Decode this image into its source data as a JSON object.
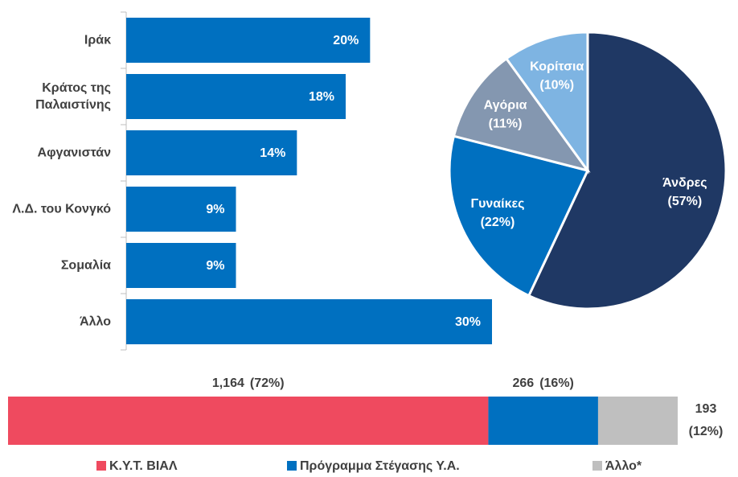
{
  "chart_data": [
    {
      "type": "hbar",
      "categories": [
        "Ιράκ",
        "Κράτος της Παλαιστίνης",
        "Αφγανιστάν",
        "Λ.Δ. του Κονγκό",
        "Σομαλία",
        "Άλλο"
      ],
      "values": [
        20,
        18,
        14,
        9,
        9,
        30
      ],
      "value_labels": [
        "20%",
        "18%",
        "14%",
        "9%",
        "9%",
        "30%"
      ],
      "color": "#0070c0"
    },
    {
      "type": "pie",
      "categories": [
        "Άνδρες",
        "Γυναίκες",
        "Αγόρια",
        "Κορίτσια"
      ],
      "values": [
        57,
        22,
        11,
        10
      ],
      "value_labels": [
        "(57%)",
        "(22%)",
        "(11%)",
        "(10%)"
      ],
      "colors": [
        "#1f3864",
        "#0070c0",
        "#8497b0",
        "#7eb4e2"
      ]
    },
    {
      "type": "stacked_hbar",
      "series": [
        {
          "name": "Κ.Υ.Τ. ΒΙΑΛ",
          "color": "#ef4a5f",
          "values": [
            1164
          ],
          "value_labels": [
            "1,164"
          ],
          "percent_labels": [
            "(72%)"
          ]
        },
        {
          "name": "Πρόγραμμα Στέγασης Υ.Α.",
          "color": "#0070c0",
          "values": [
            266
          ],
          "value_labels": [
            "266"
          ],
          "percent_labels": [
            "(16%)"
          ]
        },
        {
          "name": "Άλλο*",
          "color": "#bfbfbf",
          "values": [
            193
          ],
          "value_labels": [
            "193"
          ],
          "percent_labels": [
            "(12%)"
          ]
        }
      ],
      "legend": "bottom"
    }
  ]
}
